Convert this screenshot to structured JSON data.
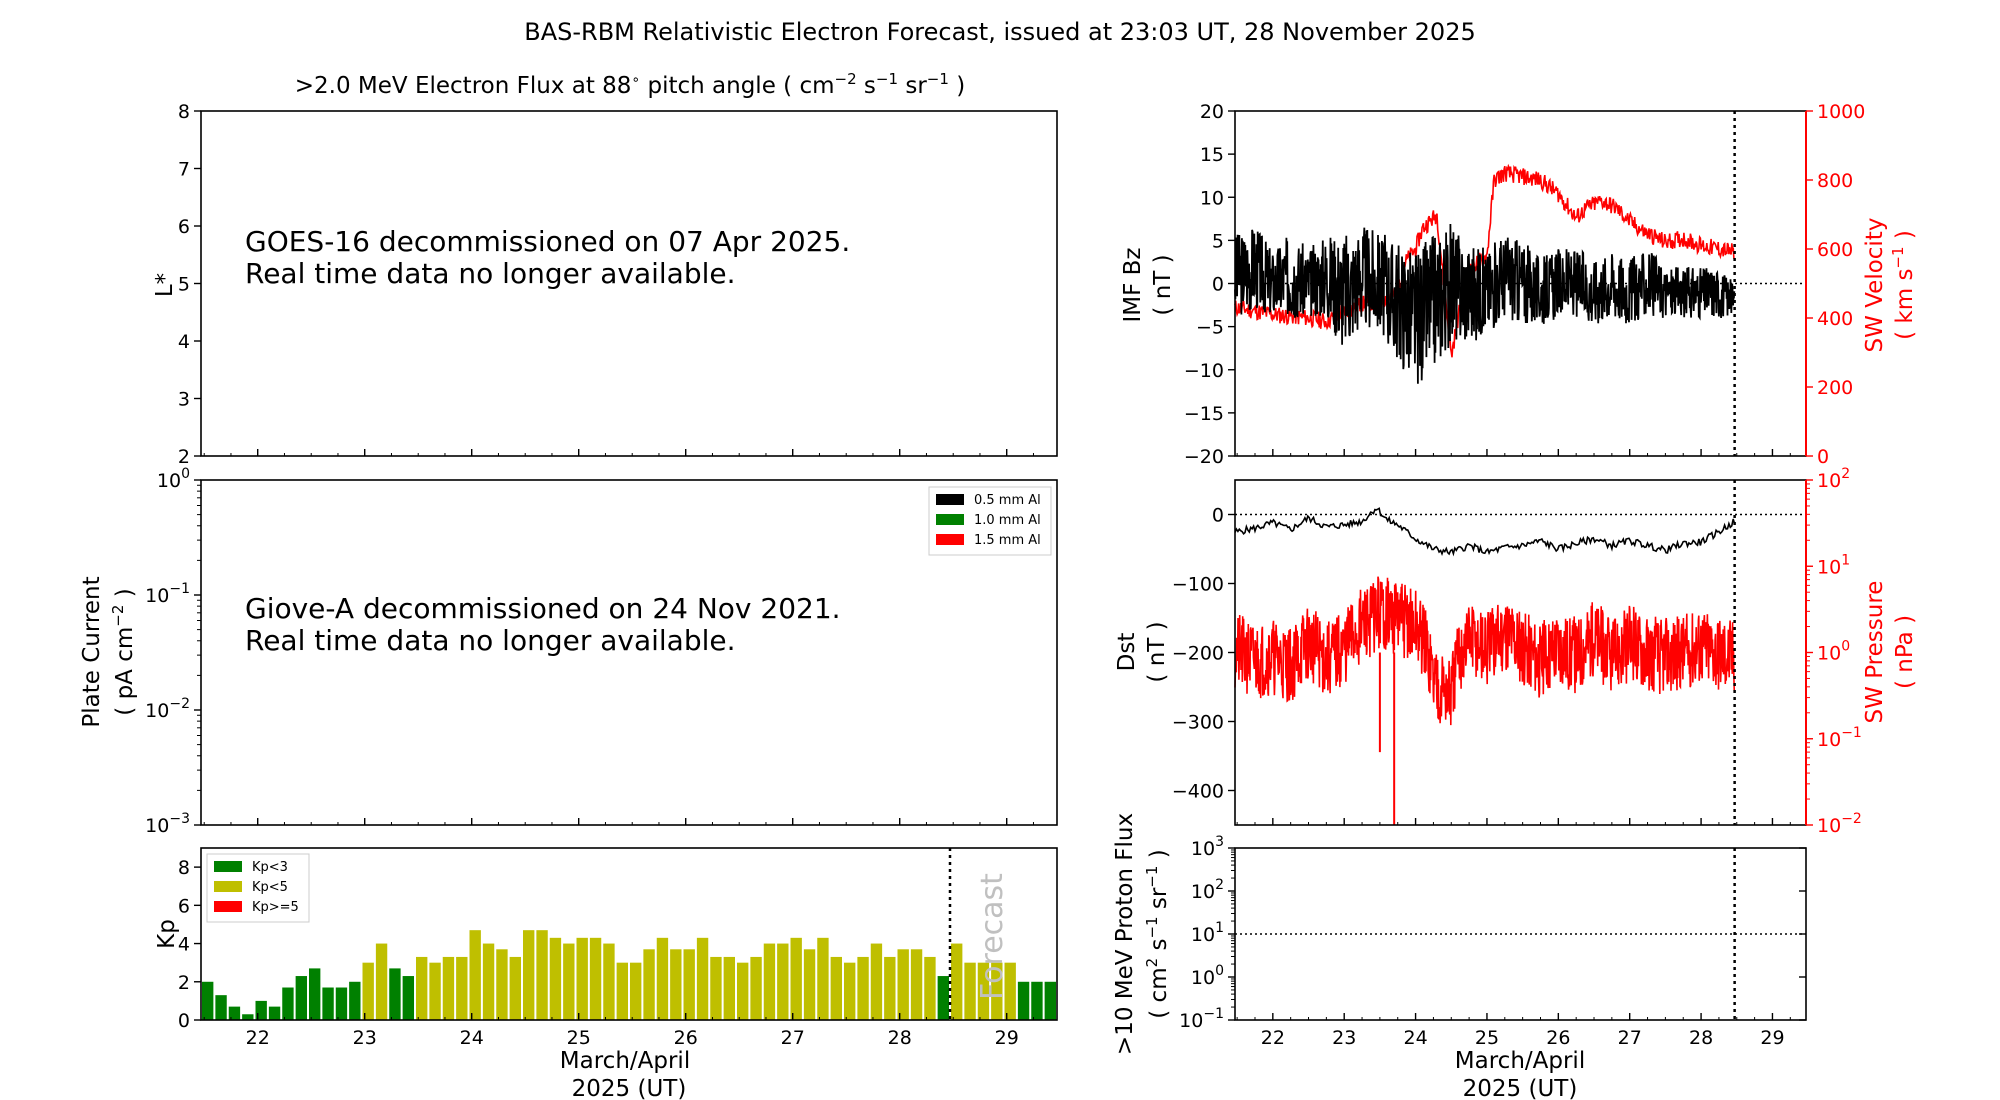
{
  "figure": {
    "title": "BAS-RBM Relativistic Electron Forecast, issued at 23:03 UT, 28 November 2025"
  },
  "panel_flux": {
    "title_main": ">2.0 MeV Electron Flux at 88",
    "title_deg": "∘",
    "title_pitch": " pitch angle ( cm",
    "title_exp1": "−2",
    "title_s": " s",
    "title_exp2": "−1",
    "title_sr": " sr",
    "title_exp3": "−1",
    "title_close": " )",
    "ylabel": "L*",
    "ylim": [
      2,
      8
    ],
    "yticks": [
      "2",
      "3",
      "4",
      "5",
      "6",
      "7",
      "8"
    ],
    "note_line1": "GOES-16 decommissioned on 07 Apr 2025.",
    "note_line2": "Real time data no longer available."
  },
  "panel_plate": {
    "ylabel1": "Plate Current",
    "ylabel2": "( pA cm",
    "ylabel2_exp": "−2",
    "ylabel2_end": " )",
    "yticks": [
      {
        "base": "10",
        "exp": "0"
      },
      {
        "base": "10",
        "exp": "−1"
      },
      {
        "base": "10",
        "exp": "−2"
      },
      {
        "base": "10",
        "exp": "−3"
      }
    ],
    "legend": [
      {
        "label": "0.5 mm Al",
        "color": "#000000"
      },
      {
        "label": "1.0 mm Al",
        "color": "#008000"
      },
      {
        "label": "1.5 mm Al",
        "color": "#ff0000"
      }
    ],
    "note_line1": "Giove-A decommissioned on 24 Nov 2021.",
    "note_line2": "Real time data no longer available."
  },
  "panel_kp": {
    "ylabel": "Kp",
    "yticks": [
      "0",
      "2",
      "4",
      "6",
      "8"
    ],
    "xticks": [
      "22",
      "23",
      "24",
      "25",
      "26",
      "27",
      "28",
      "29"
    ],
    "xlabel1": "March/April",
    "xlabel2": "2025 (UT)",
    "forecast_label": "Forecast",
    "legend": [
      {
        "label": "Kp<3",
        "color": "#008000"
      },
      {
        "label": "Kp<5",
        "color": "#bfbf00"
      },
      {
        "label": "Kp>=5",
        "color": "#ff0000"
      }
    ]
  },
  "panel_imf": {
    "ylabel1": "IMF Bz",
    "ylabel2": "( nT )",
    "yticks": [
      "−20",
      "−15",
      "−10",
      "−5",
      "0",
      "5",
      "10",
      "15",
      "20"
    ],
    "ylabel_r1": "SW Velocity",
    "ylabel_r2": "( km s",
    "ylabel_r2_exp": "−1",
    "ylabel_r2_end": " )",
    "yticks_r": [
      "0",
      "200",
      "400",
      "600",
      "800",
      "1000"
    ]
  },
  "panel_dst": {
    "ylabel1": "Dst",
    "ylabel2": "( nT )",
    "yticks": [
      "0",
      "−100",
      "−200",
      "−300",
      "−400"
    ],
    "ylabel_r1": "SW Pressure",
    "ylabel_r2": "( nPa )",
    "yticks_r": [
      {
        "base": "10",
        "exp": "2"
      },
      {
        "base": "10",
        "exp": "1"
      },
      {
        "base": "10",
        "exp": "0"
      },
      {
        "base": "10",
        "exp": "−1"
      },
      {
        "base": "10",
        "exp": "−2"
      }
    ]
  },
  "panel_proton": {
    "ylabel1": ">10 MeV Proton Flux",
    "ylabel2a": "( cm",
    "ylabel2a_exp": "2",
    "ylabel2b": " s",
    "ylabel2b_exp": "−1",
    "ylabel2c": " sr",
    "ylabel2c_exp": "−1",
    "ylabel2d": " )",
    "yticks": [
      {
        "base": "10",
        "exp": "3"
      },
      {
        "base": "10",
        "exp": "2"
      },
      {
        "base": "10",
        "exp": "1"
      },
      {
        "base": "10",
        "exp": "0"
      },
      {
        "base": "10",
        "exp": "−1"
      }
    ],
    "xticks": [
      "22",
      "23",
      "24",
      "25",
      "26",
      "27",
      "28",
      "29"
    ],
    "xlabel1": "March/April",
    "xlabel2": "2025 (UT)"
  },
  "chart_data": [
    {
      "type": "bar",
      "name": "Kp",
      "x_range": [
        21.47,
        29.47
      ],
      "ylim": [
        0,
        9
      ],
      "colors": {
        "Kp<3": "#008000",
        "Kp<5": "#bfbf00",
        "Kp>=5": "#ff0000"
      },
      "values": [
        2.0,
        1.3,
        0.7,
        0.3,
        1.0,
        0.7,
        1.7,
        2.3,
        2.7,
        1.7,
        1.7,
        2.0,
        3.0,
        4.0,
        2.7,
        2.3,
        3.3,
        3.0,
        3.3,
        3.3,
        4.7,
        4.0,
        3.7,
        3.3,
        4.7,
        4.7,
        4.3,
        4.0,
        4.3,
        4.3,
        4.0,
        3.0,
        3.0,
        3.7,
        4.3,
        3.7,
        3.7,
        4.3,
        3.3,
        3.3,
        3.0,
        3.3,
        4.0,
        4.0,
        4.3,
        3.7,
        4.3,
        3.3,
        3.0,
        3.3,
        4.0,
        3.3,
        3.7,
        3.7,
        3.3,
        2.3,
        4.0,
        3.0,
        3.0,
        3.0,
        3.0,
        2.0,
        2.0,
        2.0
      ],
      "forecast_start": 28.47
    },
    {
      "type": "line",
      "name": "IMF Bz",
      "ylabel": "IMF Bz ( nT )",
      "ylim": [
        -20,
        20
      ],
      "x_range": [
        21.47,
        29.47
      ],
      "x": [
        21.5,
        21.75,
        22.0,
        22.25,
        22.5,
        22.75,
        23.0,
        23.25,
        23.5,
        23.75,
        24.0,
        24.25,
        24.5,
        24.75,
        25.0,
        25.25,
        25.5,
        25.75,
        26.0,
        26.25,
        26.5,
        26.75,
        27.0,
        27.25,
        27.5,
        27.75,
        28.0,
        28.25,
        28.47
      ],
      "y": [
        1,
        2,
        0,
        1,
        0,
        1,
        -1,
        1,
        0,
        -2,
        -4,
        -2,
        0,
        -1,
        -1,
        1,
        0,
        -1,
        0,
        0,
        -1,
        0,
        -1,
        0,
        -1,
        -1,
        -1,
        -1,
        -2
      ],
      "envelope_amplitude": [
        5,
        5,
        4,
        5,
        4,
        5,
        7,
        6,
        6,
        7,
        8,
        8,
        7,
        6,
        5,
        5,
        5,
        4,
        4,
        4,
        4,
        4,
        4,
        4,
        3,
        3,
        3,
        3,
        2
      ]
    },
    {
      "type": "line",
      "name": "SW Velocity",
      "ylabel": "SW Velocity ( km s−1 )",
      "ylim": [
        0,
        1000
      ],
      "x": [
        21.5,
        21.75,
        22.0,
        22.25,
        22.5,
        22.75,
        23.0,
        23.25,
        23.5,
        23.75,
        23.85,
        24.0,
        24.1,
        24.3,
        24.5,
        24.7,
        24.85,
        25.0,
        25.1,
        25.25,
        25.5,
        25.75,
        26.0,
        26.25,
        26.4,
        26.6,
        26.8,
        27.0,
        27.2,
        27.5,
        27.75,
        28.0,
        28.25,
        28.47
      ],
      "y": [
        430,
        420,
        410,
        405,
        400,
        390,
        420,
        440,
        450,
        470,
        560,
        600,
        660,
        700,
        290,
        520,
        560,
        580,
        800,
        820,
        810,
        800,
        760,
        690,
        720,
        740,
        720,
        680,
        650,
        620,
        630,
        610,
        600,
        590
      ]
    },
    {
      "type": "line",
      "name": "Dst",
      "ylabel": "Dst ( nT )",
      "ylim": [
        -450,
        50
      ],
      "x": [
        21.5,
        21.75,
        22.0,
        22.25,
        22.5,
        22.75,
        23.0,
        23.25,
        23.45,
        23.6,
        23.75,
        24.0,
        24.25,
        24.5,
        24.75,
        25.0,
        25.25,
        25.5,
        25.75,
        26.0,
        26.25,
        26.5,
        26.75,
        27.0,
        27.25,
        27.5,
        27.75,
        28.0,
        28.25,
        28.47
      ],
      "y": [
        -25,
        -20,
        -12,
        -22,
        -5,
        -18,
        -15,
        -10,
        10,
        -8,
        -15,
        -35,
        -50,
        -55,
        -45,
        -55,
        -48,
        -45,
        -38,
        -50,
        -42,
        -35,
        -45,
        -38,
        -45,
        -52,
        -42,
        -40,
        -25,
        -10
      ]
    },
    {
      "type": "line",
      "name": "SW Pressure",
      "ylabel": "SW Pressure ( nPa )",
      "scale": "log",
      "ylim": [
        0.01,
        100
      ],
      "x": [
        21.5,
        21.75,
        22.0,
        22.25,
        22.5,
        22.75,
        23.0,
        23.25,
        23.5,
        23.75,
        24.0,
        24.25,
        24.5,
        24.75,
        25.0,
        25.25,
        25.5,
        25.75,
        26.0,
        26.25,
        26.5,
        26.75,
        27.0,
        27.25,
        27.5,
        27.75,
        28.0,
        28.25,
        28.47
      ],
      "y": [
        1.0,
        0.8,
        0.9,
        0.7,
        1.3,
        0.8,
        1.1,
        2.0,
        3.0,
        2.5,
        2.0,
        0.5,
        0.3,
        1.5,
        1.0,
        1.8,
        1.2,
        0.8,
        1.2,
        0.9,
        1.5,
        0.8,
        1.3,
        1.0,
        0.9,
        1.0,
        1.2,
        1.0,
        0.9
      ],
      "spikes": [
        {
          "x": 23.5,
          "y": 0.07
        },
        {
          "x": 23.7,
          "y": 0.01
        },
        {
          "x": 23.95,
          "y": 2.5
        }
      ]
    },
    {
      "type": "line",
      "name": ">10 MeV Proton Flux",
      "scale": "log",
      "ylim": [
        0.1,
        1000
      ],
      "threshold": 10,
      "x": [],
      "y": []
    }
  ]
}
